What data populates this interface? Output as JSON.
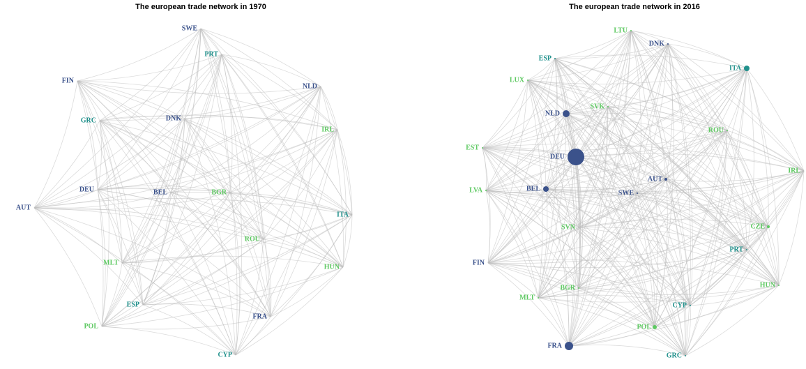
{
  "networks": [
    {
      "title": "The european trade network in 1970",
      "nodes": [
        {
          "label": "SWE",
          "color": "#3b528b"
        },
        {
          "label": "PRT",
          "color": "#21918c"
        },
        {
          "label": "NLD",
          "color": "#3b528b"
        },
        {
          "label": "FIN",
          "color": "#3b528b"
        },
        {
          "label": "GRC",
          "color": "#21918c"
        },
        {
          "label": "DNK",
          "color": "#3b528b"
        },
        {
          "label": "IRL",
          "color": "#5ec962"
        },
        {
          "label": "DEU",
          "color": "#3b528b"
        },
        {
          "label": "BEL",
          "color": "#3b528b"
        },
        {
          "label": "BGR",
          "color": "#5ec962"
        },
        {
          "label": "AUT",
          "color": "#3b528b"
        },
        {
          "label": "ITA",
          "color": "#21918c"
        },
        {
          "label": "ROU",
          "color": "#5ec962"
        },
        {
          "label": "MLT",
          "color": "#5ec962"
        },
        {
          "label": "HUN",
          "color": "#5ec962"
        },
        {
          "label": "ESP",
          "color": "#21918c"
        },
        {
          "label": "FRA",
          "color": "#3b528b"
        },
        {
          "label": "POL",
          "color": "#5ec962"
        },
        {
          "label": "CYP",
          "color": "#21918c"
        }
      ]
    },
    {
      "title": "The european trade network in 2016",
      "nodes": [
        {
          "label": "LTU",
          "color": "#5ec962"
        },
        {
          "label": "DNK",
          "color": "#3b528b"
        },
        {
          "label": "ESP",
          "color": "#21918c"
        },
        {
          "label": "ITA",
          "color": "#21918c"
        },
        {
          "label": "LUX",
          "color": "#5ec962"
        },
        {
          "label": "NLD",
          "color": "#3b528b"
        },
        {
          "label": "SVK",
          "color": "#5ec962"
        },
        {
          "label": "ROU",
          "color": "#5ec962"
        },
        {
          "label": "EST",
          "color": "#5ec962"
        },
        {
          "label": "DEU",
          "color": "#3b528b"
        },
        {
          "label": "IRL",
          "color": "#5ec962"
        },
        {
          "label": "AUT",
          "color": "#3b528b"
        },
        {
          "label": "BEL",
          "color": "#3b528b"
        },
        {
          "label": "SWE",
          "color": "#3b528b"
        },
        {
          "label": "LVA",
          "color": "#5ec962"
        },
        {
          "label": "SVN",
          "color": "#5ec962"
        },
        {
          "label": "CZE",
          "color": "#5ec962"
        },
        {
          "label": "PRT",
          "color": "#21918c"
        },
        {
          "label": "FIN",
          "color": "#3b528b"
        },
        {
          "label": "HUN",
          "color": "#5ec962"
        },
        {
          "label": "BGR",
          "color": "#5ec962"
        },
        {
          "label": "MLT",
          "color": "#5ec962"
        },
        {
          "label": "CYP",
          "color": "#21918c"
        },
        {
          "label": "POL",
          "color": "#5ec962"
        },
        {
          "label": "FRA",
          "color": "#3b528b"
        },
        {
          "label": "GRC",
          "color": "#21918c"
        }
      ]
    }
  ]
}
